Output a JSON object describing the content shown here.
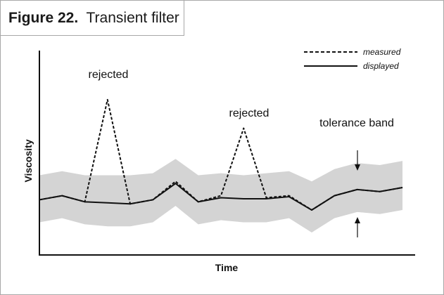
{
  "figure": {
    "label": "Figure 22.",
    "title": "Transient filter"
  },
  "chart_data": {
    "type": "line",
    "title": "Transient filter",
    "xlabel": "Time",
    "ylabel": "Viscosity",
    "xlim": [
      0,
      16
    ],
    "ylim": [
      0,
      10
    ],
    "x": [
      0,
      1,
      2,
      3,
      4,
      5,
      6,
      7,
      8,
      9,
      10,
      11,
      12,
      13,
      14,
      15,
      16
    ],
    "series": [
      {
        "name": "measured",
        "style": "dashed",
        "values": [
          2.7,
          2.9,
          2.6,
          7.6,
          2.5,
          2.7,
          3.6,
          2.6,
          2.9,
          6.2,
          2.8,
          2.9,
          2.2,
          2.9,
          3.2,
          3.1,
          3.3
        ]
      },
      {
        "name": "displayed",
        "style": "solid",
        "values": [
          2.7,
          2.9,
          2.6,
          2.55,
          2.5,
          2.7,
          3.5,
          2.6,
          2.8,
          2.75,
          2.75,
          2.85,
          2.2,
          2.9,
          3.2,
          3.1,
          3.3
        ]
      }
    ],
    "tolerance_band": {
      "label": "tolerance band",
      "upper": [
        3.9,
        4.1,
        3.9,
        3.9,
        3.9,
        4.0,
        4.7,
        3.9,
        4.0,
        3.9,
        4.0,
        4.1,
        3.6,
        4.2,
        4.5,
        4.4,
        4.6
      ],
      "lower": [
        1.6,
        1.8,
        1.5,
        1.4,
        1.4,
        1.6,
        2.4,
        1.5,
        1.7,
        1.6,
        1.6,
        1.8,
        1.1,
        1.8,
        2.1,
        2.0,
        2.2
      ],
      "color": "#d4d4d4"
    },
    "annotations": [
      {
        "text": "rejected",
        "x": 3
      },
      {
        "text": "rejected",
        "x": 9
      }
    ],
    "legend": {
      "position": "top-right",
      "entries": [
        "measured",
        "displayed"
      ]
    },
    "grid": false
  }
}
